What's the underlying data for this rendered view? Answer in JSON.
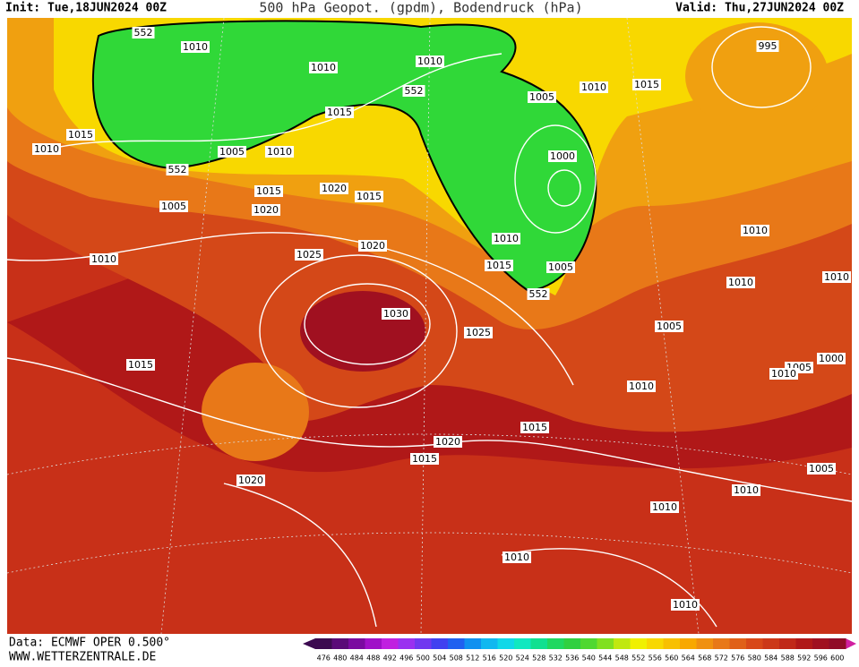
{
  "header": {
    "init": "Init: Tue,18JUN2024 00Z",
    "title": "500 hPa Geopot. (gpdm), Bodendruck (hPa)",
    "valid": "Valid: Thu,27JUN2024 00Z"
  },
  "isobar_labels": [
    "552",
    "1010",
    "1010",
    "1010",
    "1010",
    "1015",
    "995",
    "1015",
    "1010",
    "1005",
    "1010",
    "1015",
    "552",
    "1005",
    "1000",
    "552",
    "1015",
    "1020",
    "1015",
    "1005",
    "1020",
    "1020",
    "1010",
    "1010",
    "1025",
    "1010",
    "1015",
    "1005",
    "552",
    "1010",
    "1010",
    "1030",
    "1025",
    "1005",
    "1015",
    "1005",
    "1000",
    "1010",
    "1010",
    "1015",
    "1020",
    "1015",
    "1005",
    "1020",
    "1010",
    "1010",
    "1010",
    "1010"
  ],
  "colorbar": {
    "values": [
      476,
      480,
      484,
      488,
      492,
      496,
      500,
      504,
      508,
      512,
      516,
      520,
      524,
      528,
      532,
      536,
      540,
      544,
      548,
      552,
      556,
      560,
      564,
      568,
      572,
      576,
      580,
      584,
      588,
      592,
      596,
      600
    ],
    "colors": [
      "#3c0a50",
      "#5a0a78",
      "#7a0aa0",
      "#a010c8",
      "#c020e0",
      "#9a30f0",
      "#7038f0",
      "#4040f0",
      "#2060f0",
      "#1090f0",
      "#10b8f0",
      "#10d8e8",
      "#10e8c0",
      "#10e090",
      "#20d860",
      "#30d040",
      "#50d830",
      "#80e020",
      "#c0e810",
      "#f0f000",
      "#f8d800",
      "#f8c000",
      "#f8a800",
      "#f09010",
      "#e87818",
      "#e06018",
      "#d84818",
      "#cc3818",
      "#c02818",
      "#b01818",
      "#a01020",
      "#900c28"
    ]
  },
  "footer": {
    "source": "Data: ECMWF OPER 0.500°",
    "site": "WWW.WETTERZENTRALE.DE"
  }
}
